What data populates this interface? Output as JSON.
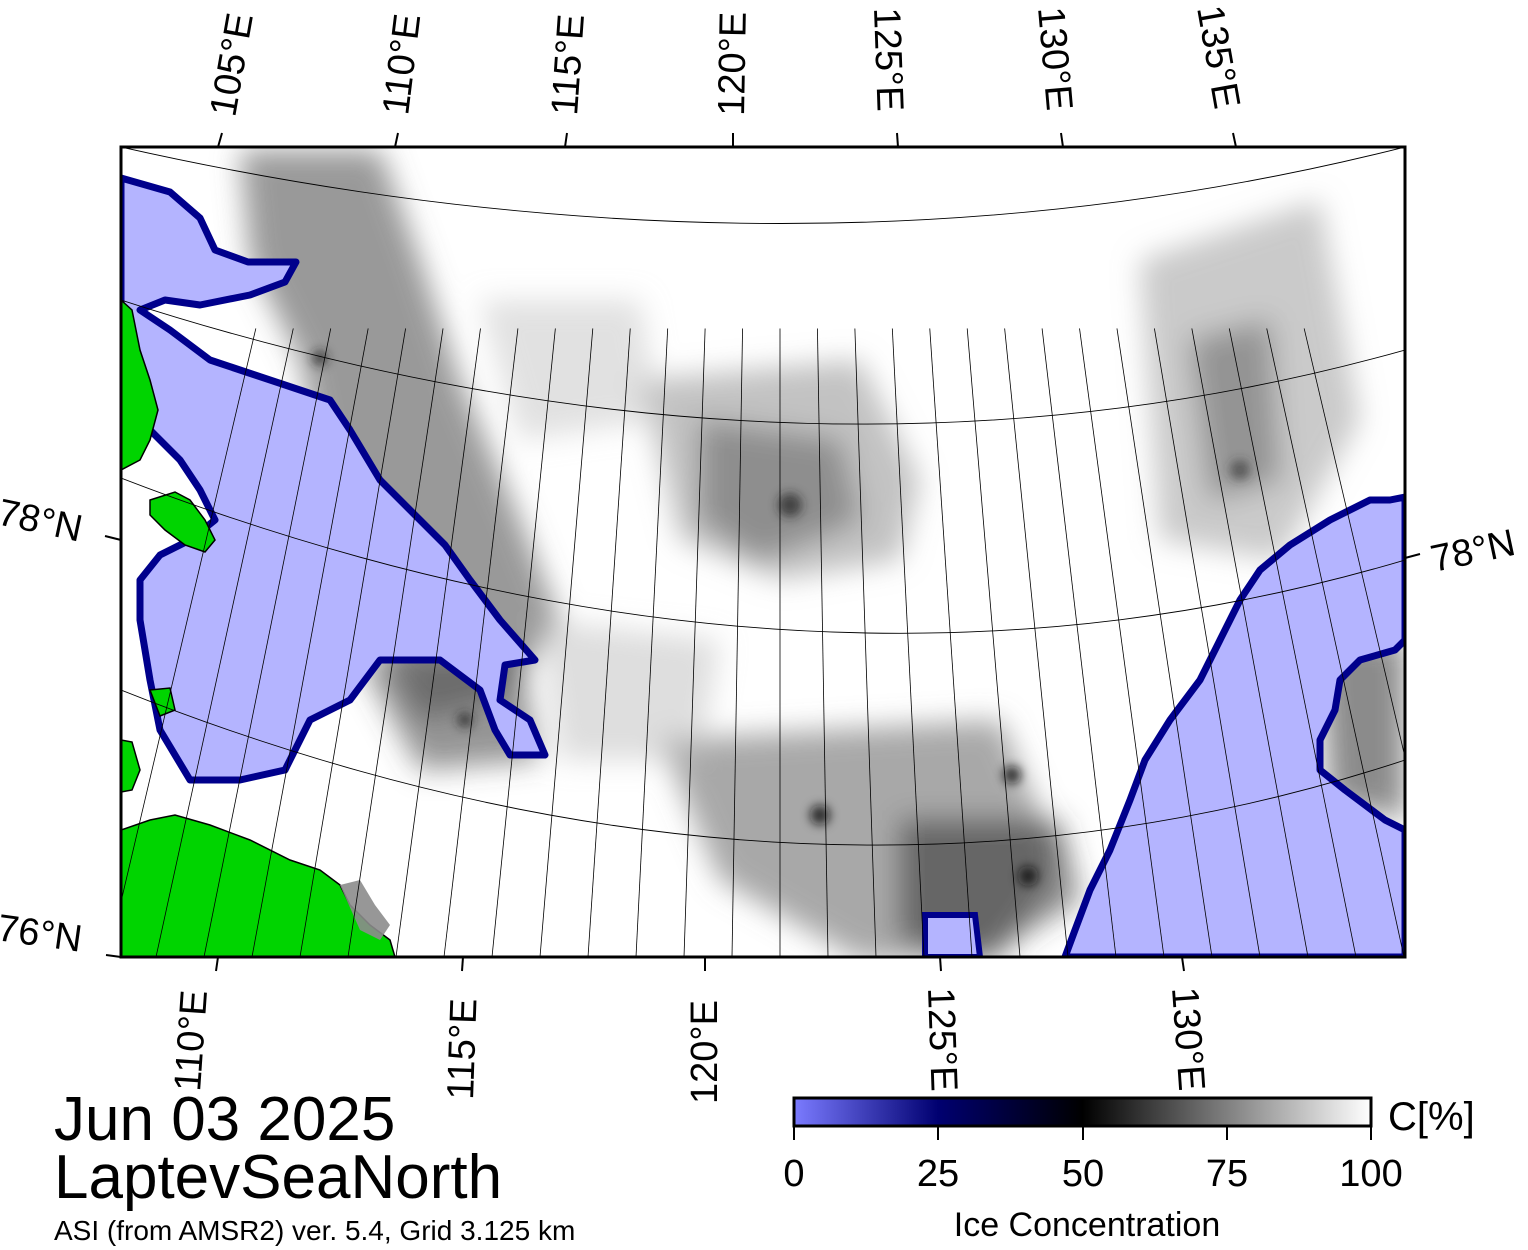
{
  "date": "Jun 03 2025",
  "region": "LaptevSeaNorth",
  "source_line": "ASI (from AMSR2) ver. 5.4,  Grid 3.125 km",
  "top_longitude_labels": [
    "105°E",
    "110°E",
    "115°E",
    "120°E",
    "125°E",
    "130°E",
    "135°E"
  ],
  "bottom_longitude_labels": [
    "110°E",
    "115°E",
    "120°E",
    "125°E",
    "130°E"
  ],
  "left_latitude_labels": [
    "78°N",
    "76°N"
  ],
  "right_latitude_labels": [
    "78°N"
  ],
  "colorbar": {
    "title": "Ice Concentration",
    "unit": "C[%]",
    "ticks": [
      "0",
      "25",
      "50",
      "75",
      "100"
    ],
    "colors": {
      "low": "#7b7bff",
      "mid_low": "#000070",
      "mid": "#000000",
      "high": "#ffffff"
    }
  },
  "colors": {
    "land": "#00d400",
    "open_water": "#b4b4ff",
    "ice_edge": "#00008c",
    "coast_shelf": "#8c8c8c"
  }
}
